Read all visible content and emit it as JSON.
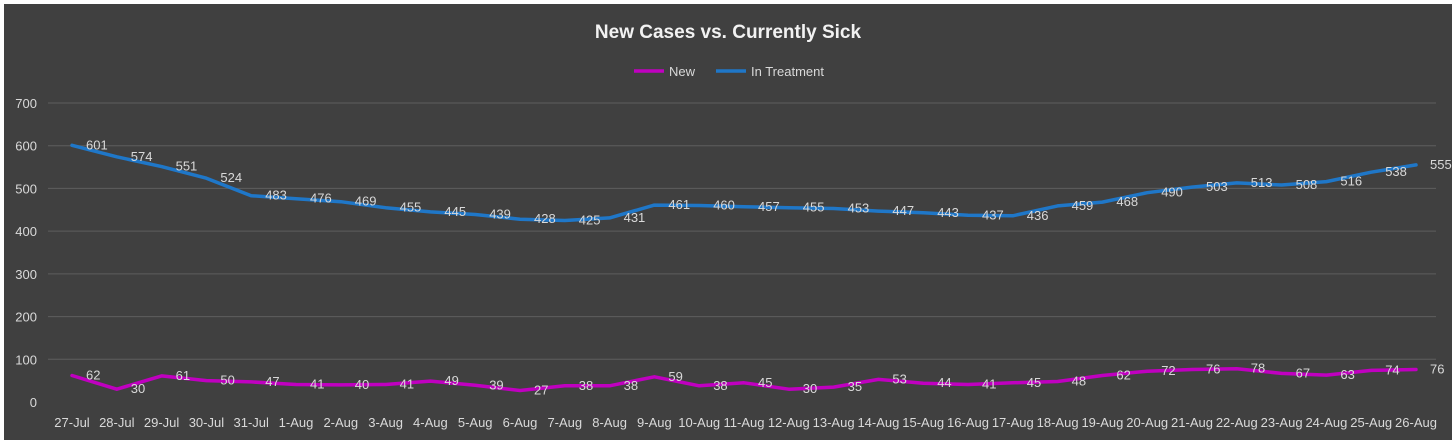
{
  "chart_data": {
    "type": "line",
    "title": "New Cases vs. Currently Sick",
    "categories": [
      "27-Jul",
      "28-Jul",
      "29-Jul",
      "30-Jul",
      "31-Jul",
      "1-Aug",
      "2-Aug",
      "3-Aug",
      "4-Aug",
      "5-Aug",
      "6-Aug",
      "7-Aug",
      "8-Aug",
      "9-Aug",
      "10-Aug",
      "11-Aug",
      "12-Aug",
      "13-Aug",
      "14-Aug",
      "15-Aug",
      "16-Aug",
      "17-Aug",
      "18-Aug",
      "19-Aug",
      "20-Aug",
      "21-Aug",
      "22-Aug",
      "23-Aug",
      "24-Aug",
      "25-Aug",
      "26-Aug"
    ],
    "series": [
      {
        "name": "New",
        "color": "#c000c0",
        "values": [
          62,
          30,
          61,
          50,
          47,
          41,
          40,
          41,
          49,
          39,
          27,
          38,
          38,
          59,
          38,
          45,
          30,
          35,
          53,
          44,
          41,
          45,
          48,
          62,
          72,
          76,
          78,
          67,
          63,
          74,
          76
        ],
        "labels": [
          "62",
          "30",
          "61",
          "50",
          "47",
          "41",
          "40",
          "41",
          "49",
          "39",
          "27",
          "38",
          "38",
          "59",
          "38",
          "45",
          "30",
          "35",
          "53",
          "44",
          "41",
          "45",
          "48",
          "62",
          "72",
          "76",
          "78",
          "67",
          "63",
          "74",
          "76"
        ]
      },
      {
        "name": "In Treatment",
        "color": "#1f77c8",
        "values": [
          601,
          574,
          551,
          524,
          483,
          476,
          469,
          455,
          445,
          439,
          428,
          425,
          431,
          461,
          460,
          457,
          455,
          453,
          447,
          443,
          437,
          436,
          459,
          468,
          490,
          503,
          513,
          508,
          516,
          538,
          555
        ],
        "labels": [
          "601",
          "574",
          "551",
          "524",
          "483",
          "476",
          "469",
          "455",
          "445",
          "439",
          "428",
          "425",
          "431",
          "461",
          "460",
          "457",
          "455",
          "453",
          "447",
          "443",
          "437",
          "436",
          "459",
          "468",
          "490",
          "503",
          "513",
          "508",
          "516",
          "538",
          "555"
        ]
      }
    ],
    "ylim": [
      0,
      700
    ],
    "yticks": [
      0,
      100,
      200,
      300,
      400,
      500,
      600,
      700
    ],
    "ytick_labels": [
      "0",
      "100",
      "200",
      "300",
      "400",
      "500",
      "600",
      "700"
    ],
    "xlabel": "",
    "ylabel": "",
    "grid": true,
    "legend_position": "top-center",
    "colors": {
      "background": "#404040",
      "gridline": "#5e5e5e",
      "text": "#d9d9d9",
      "title": "#f2f2f2"
    }
  }
}
